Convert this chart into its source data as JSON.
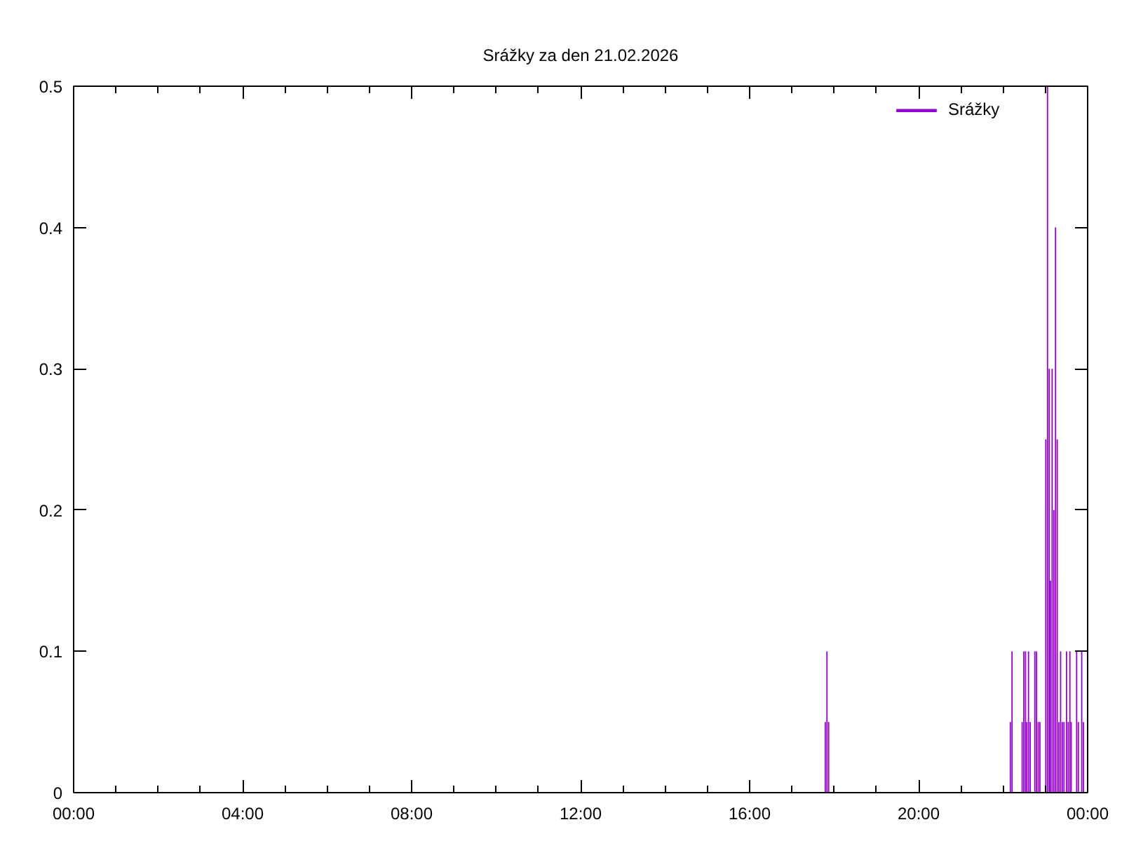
{
  "chart_data": {
    "type": "bar",
    "title": "Srážky za den 21.02.2026",
    "x": [
      17.79,
      17.83,
      17.87,
      22.17,
      22.21,
      22.45,
      22.49,
      22.53,
      22.56,
      22.6,
      22.64,
      22.75,
      22.79,
      22.83,
      22.87,
      23.01,
      23.05,
      23.09,
      23.12,
      23.16,
      23.2,
      23.24,
      23.28,
      23.32,
      23.36,
      23.4,
      23.44,
      23.5,
      23.54,
      23.58,
      23.61,
      23.74,
      23.78,
      23.86,
      23.9
    ],
    "series": [
      {
        "name": "Srážky",
        "color": "#9400d3",
        "values": [
          0.05,
          0.1,
          0.05,
          0.05,
          0.1,
          0.05,
          0.1,
          0.1,
          0.05,
          0.1,
          0.05,
          0.1,
          0.1,
          0.05,
          0.05,
          0.25,
          0.5,
          0.3,
          0.15,
          0.3,
          0.2,
          0.4,
          0.25,
          0.05,
          0.1,
          0.05,
          0.05,
          0.1,
          0.05,
          0.1,
          0.05,
          0.1,
          0.05,
          0.1,
          0.05
        ]
      }
    ],
    "xlim": [
      0,
      24
    ],
    "xticks": [
      {
        "value": 0,
        "label": "00:00"
      },
      {
        "value": 1,
        "label": null
      },
      {
        "value": 2,
        "label": null
      },
      {
        "value": 3,
        "label": null
      },
      {
        "value": 4,
        "label": "04:00"
      },
      {
        "value": 5,
        "label": null
      },
      {
        "value": 6,
        "label": null
      },
      {
        "value": 7,
        "label": null
      },
      {
        "value": 8,
        "label": "08:00"
      },
      {
        "value": 9,
        "label": null
      },
      {
        "value": 10,
        "label": null
      },
      {
        "value": 11,
        "label": null
      },
      {
        "value": 12,
        "label": "12:00"
      },
      {
        "value": 13,
        "label": null
      },
      {
        "value": 14,
        "label": null
      },
      {
        "value": 15,
        "label": null
      },
      {
        "value": 16,
        "label": "16:00"
      },
      {
        "value": 17,
        "label": null
      },
      {
        "value": 18,
        "label": null
      },
      {
        "value": 19,
        "label": null
      },
      {
        "value": 20,
        "label": "20:00"
      },
      {
        "value": 21,
        "label": null
      },
      {
        "value": 22,
        "label": null
      },
      {
        "value": 23,
        "label": null
      },
      {
        "value": 24,
        "label": "00:00"
      }
    ],
    "ylim": [
      0,
      0.5
    ],
    "yticks": [
      0,
      0.1,
      0.2,
      0.3,
      0.4,
      0.5
    ],
    "legend": "top right",
    "grid": false
  }
}
